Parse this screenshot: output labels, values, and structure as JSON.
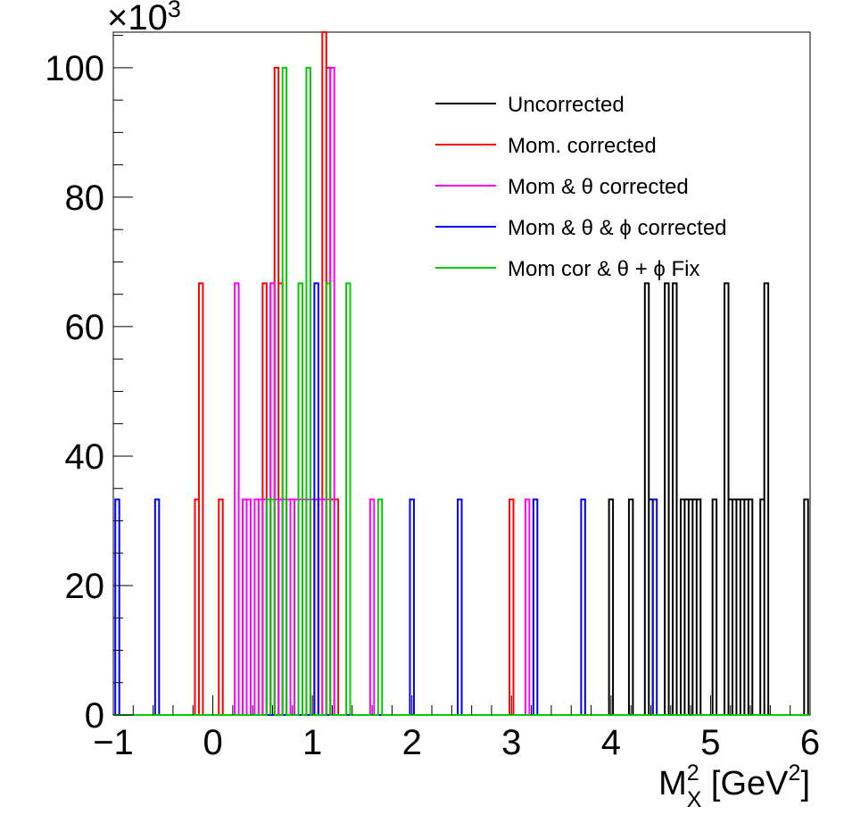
{
  "chart_data": {
    "type": "histogram",
    "xlabel": {
      "main": "M",
      "sup": "2",
      "sub": "X",
      "unit_open": " [GeV",
      "unit_sup": "2",
      "unit_close": "]"
    },
    "ylabel": "",
    "y_multiplier": {
      "base": "×10",
      "exp": "3"
    },
    "xlim": [
      -1,
      6
    ],
    "ylim": [
      0,
      105.5
    ],
    "x_ticks": [
      -1,
      0,
      1,
      2,
      3,
      4,
      5,
      6
    ],
    "x_tick_labels": [
      "−1",
      "0",
      "1",
      "2",
      "3",
      "4",
      "5",
      "6"
    ],
    "y_ticks": [
      0,
      20,
      40,
      60,
      80,
      100
    ],
    "y_tick_labels": [
      "0",
      "20",
      "40",
      "60",
      "80",
      "100"
    ],
    "bin_width": 0.04,
    "legend_position": "top-right",
    "grid": false,
    "series": [
      {
        "name": "Uncorrected",
        "color": "#000000",
        "bins": [
          [
            3.98,
            33.3
          ],
          [
            4.18,
            33.3
          ],
          [
            4.34,
            66.7
          ],
          [
            4.38,
            33.3
          ],
          [
            4.54,
            66.7
          ],
          [
            4.62,
            66.7
          ],
          [
            4.7,
            33.3
          ],
          [
            4.74,
            33.3
          ],
          [
            4.78,
            33.3
          ],
          [
            4.82,
            33.3
          ],
          [
            4.86,
            33.3
          ],
          [
            5.02,
            33.3
          ],
          [
            5.14,
            66.7
          ],
          [
            5.18,
            33.3
          ],
          [
            5.22,
            33.3
          ],
          [
            5.26,
            33.3
          ],
          [
            5.3,
            33.3
          ],
          [
            5.34,
            33.3
          ],
          [
            5.38,
            33.3
          ],
          [
            5.5,
            33.3
          ],
          [
            5.54,
            66.7
          ],
          [
            5.94,
            33.3
          ]
        ]
      },
      {
        "name": "Mom. corrected",
        "color": "#ff0000",
        "bins": [
          [
            -0.18,
            33.3
          ],
          [
            -0.14,
            66.7
          ],
          [
            0.06,
            33.3
          ],
          [
            0.5,
            66.7
          ],
          [
            0.54,
            33.3
          ],
          [
            0.58,
            66.7
          ],
          [
            0.62,
            100.0
          ],
          [
            0.66,
            66.7
          ],
          [
            0.7,
            33.3
          ],
          [
            0.9,
            33.3
          ],
          [
            0.94,
            33.3
          ],
          [
            0.98,
            33.3
          ],
          [
            1.02,
            33.3
          ],
          [
            1.06,
            33.3
          ],
          [
            1.1,
            105.5
          ],
          [
            1.14,
            100.0
          ],
          [
            1.18,
            33.3
          ],
          [
            1.22,
            33.3
          ],
          [
            2.98,
            33.3
          ]
        ]
      },
      {
        "name": "Mom & θ corrected",
        "color": "#ff00ff",
        "bins": [
          [
            0.22,
            66.7
          ],
          [
            0.3,
            33.3
          ],
          [
            0.34,
            33.3
          ],
          [
            0.42,
            33.3
          ],
          [
            0.46,
            33.3
          ],
          [
            0.5,
            33.3
          ],
          [
            0.54,
            33.3
          ],
          [
            0.58,
            66.7
          ],
          [
            0.62,
            33.3
          ],
          [
            0.66,
            33.3
          ],
          [
            0.7,
            33.3
          ],
          [
            0.74,
            33.3
          ],
          [
            0.78,
            33.3
          ],
          [
            0.82,
            33.3
          ],
          [
            0.86,
            33.3
          ],
          [
            0.9,
            33.3
          ],
          [
            0.94,
            33.3
          ],
          [
            0.98,
            33.3
          ],
          [
            1.02,
            33.3
          ],
          [
            1.06,
            33.3
          ],
          [
            1.1,
            33.3
          ],
          [
            1.14,
            33.3
          ],
          [
            1.18,
            100.0
          ],
          [
            1.58,
            33.3
          ],
          [
            3.14,
            33.3
          ]
        ]
      },
      {
        "name": "Mom & θ & ϕ corrected",
        "color": "#0000ff",
        "bins": [
          [
            -0.98,
            33.3
          ],
          [
            -0.58,
            33.3
          ],
          [
            1.02,
            66.7
          ],
          [
            1.98,
            33.3
          ],
          [
            2.46,
            33.3
          ],
          [
            3.22,
            33.3
          ],
          [
            3.7,
            33.3
          ],
          [
            4.42,
            33.3
          ]
        ]
      },
      {
        "name": "Mom cor & θ + ϕ Fix",
        "color": "#00cc00",
        "bins": [
          [
            0.54,
            33.3
          ],
          [
            0.58,
            33.3
          ],
          [
            0.7,
            100.0
          ],
          [
            0.86,
            66.7
          ],
          [
            0.94,
            100.0
          ],
          [
            1.14,
            66.7
          ],
          [
            1.34,
            66.7
          ],
          [
            1.66,
            33.3
          ]
        ]
      }
    ]
  }
}
